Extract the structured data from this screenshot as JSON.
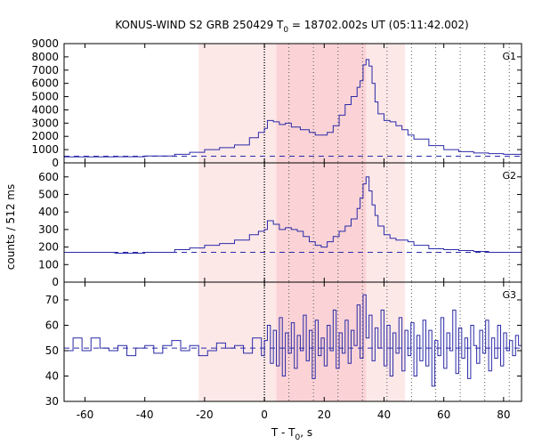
{
  "chart_data": {
    "type": "line",
    "title_main": "KONUS-WIND S2 GRB 250429 T",
    "title_sub": "0",
    "title_rest": " = 18702.002s UT (05:11:42.002)",
    "xlabel_main": "T - T",
    "xlabel_sub": "0",
    "xlabel_rest": ", s",
    "ylabel": "counts / 512 ms",
    "xlim": [
      -67,
      86
    ],
    "x_ticks": [
      -60,
      -40,
      -20,
      0,
      20,
      40,
      60,
      80
    ],
    "shaded_regions": [
      {
        "from": -22,
        "to": 47,
        "color": "#fde8e8"
      },
      {
        "from": 4,
        "to": 34,
        "color": "#fbd3d6"
      }
    ],
    "trigger_line": 0,
    "dotted_lines": [
      8.2,
      16.4,
      24.6,
      32.8,
      41.0,
      49.2,
      57.3,
      65.5,
      73.7,
      81.9
    ],
    "line_color": "#2a2aa8",
    "panels": [
      {
        "label": "G1",
        "ylim": [
          0,
          9000
        ],
        "y_ticks": [
          0,
          1000,
          2000,
          3000,
          4000,
          5000,
          6000,
          7000,
          8000,
          9000
        ],
        "background": 500,
        "series": [
          [
            -67,
            450
          ],
          [
            -50,
            460
          ],
          [
            -40,
            520
          ],
          [
            -30,
            650
          ],
          [
            -25,
            800
          ],
          [
            -20,
            1000
          ],
          [
            -15,
            1150
          ],
          [
            -10,
            1350
          ],
          [
            -5,
            1900
          ],
          [
            -2,
            2300
          ],
          [
            0,
            2600
          ],
          [
            1,
            3200
          ],
          [
            3,
            3100
          ],
          [
            5,
            2900
          ],
          [
            7,
            3000
          ],
          [
            9,
            2700
          ],
          [
            12,
            2500
          ],
          [
            15,
            2300
          ],
          [
            17,
            2100
          ],
          [
            19,
            2100
          ],
          [
            21,
            2300
          ],
          [
            23,
            2800
          ],
          [
            25,
            3600
          ],
          [
            27,
            4400
          ],
          [
            29,
            5000
          ],
          [
            31,
            5700
          ],
          [
            32,
            6200
          ],
          [
            33,
            7400
          ],
          [
            34,
            7800
          ],
          [
            35,
            7300
          ],
          [
            36,
            6000
          ],
          [
            37,
            4600
          ],
          [
            38,
            3700
          ],
          [
            40,
            3200
          ],
          [
            42,
            3100
          ],
          [
            44,
            2800
          ],
          [
            46,
            2500
          ],
          [
            48,
            2100
          ],
          [
            50,
            1800
          ],
          [
            55,
            1300
          ],
          [
            60,
            1000
          ],
          [
            65,
            850
          ],
          [
            70,
            750
          ],
          [
            75,
            700
          ],
          [
            80,
            650
          ],
          [
            86,
            600
          ]
        ]
      },
      {
        "label": "G2",
        "ylim": [
          0,
          680
        ],
        "y_ticks": [
          0,
          100,
          200,
          300,
          400,
          500,
          600
        ],
        "background": 170,
        "series": [
          [
            -67,
            170
          ],
          [
            -50,
            165
          ],
          [
            -40,
            170
          ],
          [
            -30,
            185
          ],
          [
            -25,
            195
          ],
          [
            -20,
            210
          ],
          [
            -15,
            220
          ],
          [
            -10,
            240
          ],
          [
            -5,
            270
          ],
          [
            -2,
            290
          ],
          [
            0,
            300
          ],
          [
            1,
            350
          ],
          [
            3,
            330
          ],
          [
            5,
            300
          ],
          [
            7,
            310
          ],
          [
            9,
            300
          ],
          [
            11,
            290
          ],
          [
            13,
            260
          ],
          [
            15,
            230
          ],
          [
            17,
            210
          ],
          [
            19,
            200
          ],
          [
            21,
            230
          ],
          [
            23,
            260
          ],
          [
            25,
            290
          ],
          [
            27,
            320
          ],
          [
            29,
            360
          ],
          [
            31,
            420
          ],
          [
            32,
            480
          ],
          [
            33,
            560
          ],
          [
            34,
            600
          ],
          [
            35,
            520
          ],
          [
            36,
            440
          ],
          [
            37,
            380
          ],
          [
            38,
            320
          ],
          [
            40,
            270
          ],
          [
            42,
            250
          ],
          [
            44,
            240
          ],
          [
            46,
            240
          ],
          [
            48,
            230
          ],
          [
            50,
            210
          ],
          [
            55,
            190
          ],
          [
            60,
            185
          ],
          [
            65,
            180
          ],
          [
            70,
            175
          ],
          [
            75,
            170
          ],
          [
            80,
            170
          ],
          [
            86,
            170
          ]
        ]
      },
      {
        "label": "G3",
        "ylim": [
          30,
          77
        ],
        "y_ticks": [
          30,
          40,
          50,
          60,
          70
        ],
        "background": 51,
        "series": [
          [
            -67,
            50
          ],
          [
            -64,
            55
          ],
          [
            -61,
            50
          ],
          [
            -58,
            55
          ],
          [
            -55,
            51
          ],
          [
            -52,
            50
          ],
          [
            -49,
            52
          ],
          [
            -46,
            48
          ],
          [
            -43,
            51
          ],
          [
            -40,
            52
          ],
          [
            -37,
            49
          ],
          [
            -34,
            52
          ],
          [
            -31,
            54
          ],
          [
            -28,
            50
          ],
          [
            -25,
            52
          ],
          [
            -22,
            48
          ],
          [
            -19,
            50
          ],
          [
            -16,
            53
          ],
          [
            -13,
            51
          ],
          [
            -10,
            52
          ],
          [
            -7,
            49
          ],
          [
            -4,
            55
          ],
          [
            -1,
            48
          ],
          [
            0,
            54
          ],
          [
            1,
            60
          ],
          [
            2,
            45
          ],
          [
            3,
            58
          ],
          [
            4,
            44
          ],
          [
            5,
            63
          ],
          [
            6,
            40
          ],
          [
            7,
            57
          ],
          [
            8,
            49
          ],
          [
            9,
            61
          ],
          [
            10,
            43
          ],
          [
            11,
            56
          ],
          [
            12,
            50
          ],
          [
            13,
            64
          ],
          [
            14,
            46
          ],
          [
            15,
            58
          ],
          [
            16,
            39
          ],
          [
            17,
            62
          ],
          [
            18,
            48
          ],
          [
            19,
            55
          ],
          [
            20,
            44
          ],
          [
            21,
            60
          ],
          [
            22,
            50
          ],
          [
            23,
            66
          ],
          [
            24,
            43
          ],
          [
            25,
            57
          ],
          [
            26,
            49
          ],
          [
            27,
            62
          ],
          [
            28,
            45
          ],
          [
            29,
            58
          ],
          [
            30,
            52
          ],
          [
            31,
            68
          ],
          [
            32,
            47
          ],
          [
            33,
            72
          ],
          [
            34,
            55
          ],
          [
            35,
            64
          ],
          [
            36,
            46
          ],
          [
            37,
            59
          ],
          [
            38,
            51
          ],
          [
            39,
            66
          ],
          [
            40,
            44
          ],
          [
            41,
            60
          ],
          [
            42,
            40
          ],
          [
            43,
            57
          ],
          [
            44,
            49
          ],
          [
            45,
            63
          ],
          [
            46,
            42
          ],
          [
            47,
            58
          ],
          [
            48,
            48
          ],
          [
            49,
            61
          ],
          [
            50,
            40
          ],
          [
            51,
            56
          ],
          [
            52,
            46
          ],
          [
            53,
            62
          ],
          [
            54,
            44
          ],
          [
            55,
            58
          ],
          [
            56,
            36
          ],
          [
            57,
            54
          ],
          [
            58,
            48
          ],
          [
            59,
            63
          ],
          [
            60,
            43
          ],
          [
            61,
            57
          ],
          [
            62,
            50
          ],
          [
            63,
            66
          ],
          [
            64,
            41
          ],
          [
            65,
            59
          ],
          [
            66,
            47
          ],
          [
            67,
            55
          ],
          [
            68,
            39
          ],
          [
            69,
            60
          ],
          [
            70,
            52
          ],
          [
            71,
            45
          ],
          [
            72,
            58
          ],
          [
            73,
            49
          ],
          [
            74,
            62
          ],
          [
            75,
            42
          ],
          [
            76,
            55
          ],
          [
            77,
            47
          ],
          [
            78,
            60
          ],
          [
            79,
            44
          ],
          [
            80,
            57
          ],
          [
            81,
            50
          ],
          [
            82,
            54
          ],
          [
            83,
            48
          ],
          [
            84,
            56
          ],
          [
            85,
            52
          ],
          [
            86,
            55
          ]
        ]
      }
    ]
  }
}
